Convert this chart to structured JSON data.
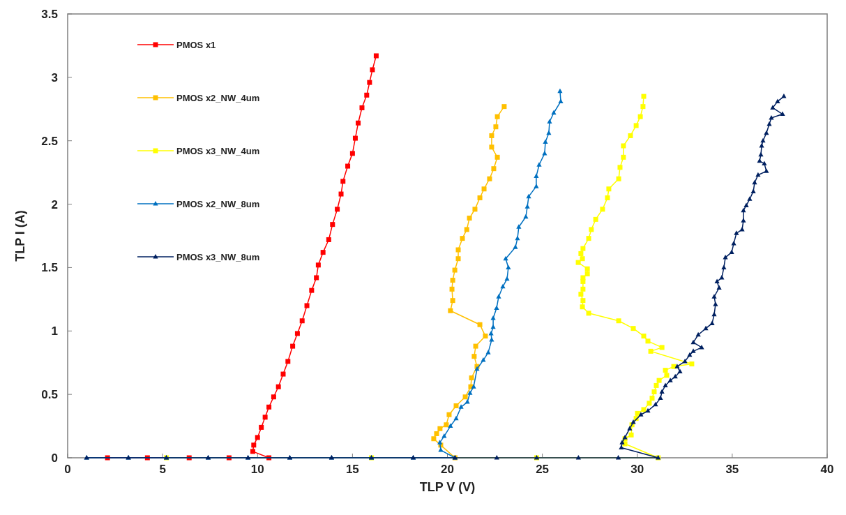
{
  "chart_data": {
    "type": "line",
    "xlabel": "TLP V (V)",
    "ylabel": "TLP I (A)",
    "xlim": [
      0,
      40
    ],
    "xticks": [
      0,
      5,
      10,
      15,
      20,
      25,
      30,
      35,
      40
    ],
    "ylim": [
      0,
      3.5
    ],
    "yticks": [
      0,
      0.5,
      1,
      1.5,
      2,
      2.5,
      3,
      3.5
    ],
    "legend": "top left",
    "grid": false,
    "line_style": "solid",
    "series": [
      {
        "name": "PMOS x1",
        "color": "#ff0000",
        "marker": "square",
        "x": [
          2.1,
          4.2,
          6.4,
          8.5,
          10.6,
          9.75,
          9.8,
          10.0,
          10.2,
          10.4,
          10.6,
          10.85,
          11.1,
          11.35,
          11.6,
          11.85,
          12.1,
          12.35,
          12.6,
          12.85,
          13.1,
          13.2,
          13.45,
          13.75,
          13.95,
          14.2,
          14.4,
          14.5,
          14.75,
          15.0,
          15.15,
          15.3,
          15.5,
          15.75,
          15.9,
          16.05,
          16.25
        ],
        "values": [
          0,
          0,
          0,
          0,
          0,
          0.05,
          0.1,
          0.16,
          0.24,
          0.32,
          0.4,
          0.48,
          0.56,
          0.66,
          0.76,
          0.88,
          0.98,
          1.08,
          1.2,
          1.32,
          1.42,
          1.52,
          1.62,
          1.72,
          1.84,
          1.96,
          2.08,
          2.18,
          2.3,
          2.4,
          2.52,
          2.64,
          2.76,
          2.86,
          2.96,
          3.06,
          3.17
        ]
      },
      {
        "name": "PMOS x2_NW_4um",
        "color": "#ffc000",
        "marker": "square",
        "x": [
          20.4,
          19.65,
          19.28,
          19.43,
          19.61,
          19.94,
          20.09,
          20.46,
          20.94,
          21.23,
          21.27,
          21.56,
          21.41,
          21.49,
          22.0,
          21.71,
          20.16,
          20.28,
          20.24,
          20.28,
          20.39,
          20.57,
          20.57,
          20.79,
          21.02,
          21.16,
          21.45,
          21.71,
          21.93,
          22.22,
          22.44,
          22.63,
          22.33,
          22.33,
          22.55,
          22.63,
          22.99
        ],
        "values": [
          0,
          0.1,
          0.15,
          0.19,
          0.23,
          0.26,
          0.34,
          0.41,
          0.48,
          0.56,
          0.63,
          0.72,
          0.8,
          0.88,
          0.96,
          1.05,
          1.16,
          1.24,
          1.33,
          1.4,
          1.48,
          1.57,
          1.64,
          1.73,
          1.8,
          1.89,
          1.96,
          2.05,
          2.12,
          2.2,
          2.28,
          2.37,
          2.45,
          2.54,
          2.61,
          2.69,
          2.77
        ]
      },
      {
        "name": "PMOS x3_NW_4um",
        "color": "#ffff00",
        "marker": "square",
        "x": [
          5.2,
          16.0,
          24.7,
          31.1,
          29.35,
          29.35,
          29.68,
          29.72,
          29.94,
          30.01,
          30.34,
          30.63,
          30.78,
          30.89,
          31.0,
          31.15,
          31.55,
          31.48,
          31.92,
          32.87,
          30.71,
          31.3,
          30.56,
          30.34,
          29.79,
          29.02,
          27.44,
          27.11,
          27.14,
          27.03,
          27.14,
          27.14,
          27.14,
          27.37,
          27.37,
          26.89,
          27.11,
          27.03,
          27.14,
          27.44,
          27.58,
          27.81,
          28.17,
          28.43,
          28.5,
          29.02,
          29.09,
          29.27,
          29.27,
          29.64,
          29.94,
          30.16,
          30.3,
          30.34
        ],
        "values": [
          0,
          0,
          0,
          0,
          0.11,
          0.15,
          0.18,
          0.26,
          0.31,
          0.35,
          0.38,
          0.43,
          0.47,
          0.52,
          0.57,
          0.61,
          0.65,
          0.69,
          0.72,
          0.74,
          0.84,
          0.87,
          0.92,
          0.96,
          1.02,
          1.08,
          1.14,
          1.19,
          1.24,
          1.29,
          1.33,
          1.39,
          1.42,
          1.45,
          1.49,
          1.54,
          1.57,
          1.61,
          1.65,
          1.73,
          1.8,
          1.88,
          1.96,
          2.05,
          2.12,
          2.2,
          2.29,
          2.37,
          2.46,
          2.54,
          2.62,
          2.69,
          2.77,
          2.85
        ]
      },
      {
        "name": "PMOS x2_NW_8um",
        "color": "#0070c0",
        "marker": "triangle",
        "x": [
          1.0,
          3.2,
          5.2,
          7.4,
          9.5,
          11.7,
          13.9,
          16.0,
          18.2,
          20.4,
          19.65,
          19.6,
          19.83,
          20.16,
          20.46,
          20.72,
          21.05,
          21.19,
          21.38,
          21.56,
          21.89,
          22.15,
          22.33,
          22.3,
          22.41,
          22.41,
          22.59,
          22.7,
          22.92,
          23.14,
          23.21,
          23.07,
          23.58,
          23.69,
          23.76,
          24.13,
          24.21,
          24.28,
          24.68,
          24.68,
          24.83,
          25.12,
          25.16,
          25.34,
          25.38,
          25.6,
          25.97,
          25.93
        ],
        "values": [
          0,
          0,
          0,
          0,
          0,
          0,
          0,
          0,
          0,
          0,
          0.06,
          0.12,
          0.17,
          0.25,
          0.31,
          0.4,
          0.44,
          0.51,
          0.56,
          0.7,
          0.77,
          0.83,
          0.93,
          0.98,
          1.03,
          1.1,
          1.18,
          1.27,
          1.35,
          1.41,
          1.5,
          1.57,
          1.66,
          1.73,
          1.82,
          1.9,
          1.98,
          2.06,
          2.14,
          2.22,
          2.31,
          2.4,
          2.49,
          2.56,
          2.65,
          2.72,
          2.81,
          2.89
        ]
      },
      {
        "name": "PMOS x3_NW_8um",
        "color": "#002060",
        "marker": "triangle",
        "x": [
          1.0,
          3.2,
          5.2,
          7.4,
          9.5,
          11.7,
          13.9,
          16.0,
          18.2,
          20.4,
          22.6,
          24.7,
          26.9,
          29.0,
          31.1,
          29.16,
          29.2,
          29.35,
          29.6,
          29.79,
          30.19,
          30.56,
          30.96,
          31.22,
          31.3,
          31.48,
          31.74,
          32.0,
          32.25,
          32.1,
          32.51,
          32.76,
          32.95,
          33.39,
          32.95,
          33.21,
          33.61,
          33.94,
          34.05,
          34.12,
          34.05,
          34.31,
          34.2,
          34.45,
          34.56,
          34.64,
          34.97,
          35.08,
          35.22,
          35.52,
          35.59,
          35.59,
          35.74,
          35.92,
          36.11,
          36.18,
          36.36,
          36.8,
          36.69,
          36.44,
          36.51,
          36.55,
          36.62,
          36.8,
          36.95,
          37.06,
          37.65,
          37.13,
          37.39,
          37.72
        ],
        "values": [
          0,
          0,
          0,
          0,
          0,
          0,
          0,
          0,
          0,
          0,
          0,
          0,
          0,
          0,
          0,
          0.08,
          0.12,
          0.16,
          0.23,
          0.28,
          0.34,
          0.37,
          0.42,
          0.47,
          0.52,
          0.57,
          0.61,
          0.64,
          0.68,
          0.72,
          0.76,
          0.81,
          0.84,
          0.87,
          0.91,
          0.97,
          1.02,
          1.06,
          1.13,
          1.21,
          1.27,
          1.34,
          1.39,
          1.42,
          1.5,
          1.58,
          1.62,
          1.69,
          1.77,
          1.8,
          1.87,
          1.95,
          1.99,
          2.04,
          2.1,
          2.17,
          2.23,
          2.26,
          2.32,
          2.34,
          2.39,
          2.46,
          2.5,
          2.56,
          2.63,
          2.68,
          2.71,
          2.76,
          2.81,
          2.85
        ]
      }
    ]
  }
}
